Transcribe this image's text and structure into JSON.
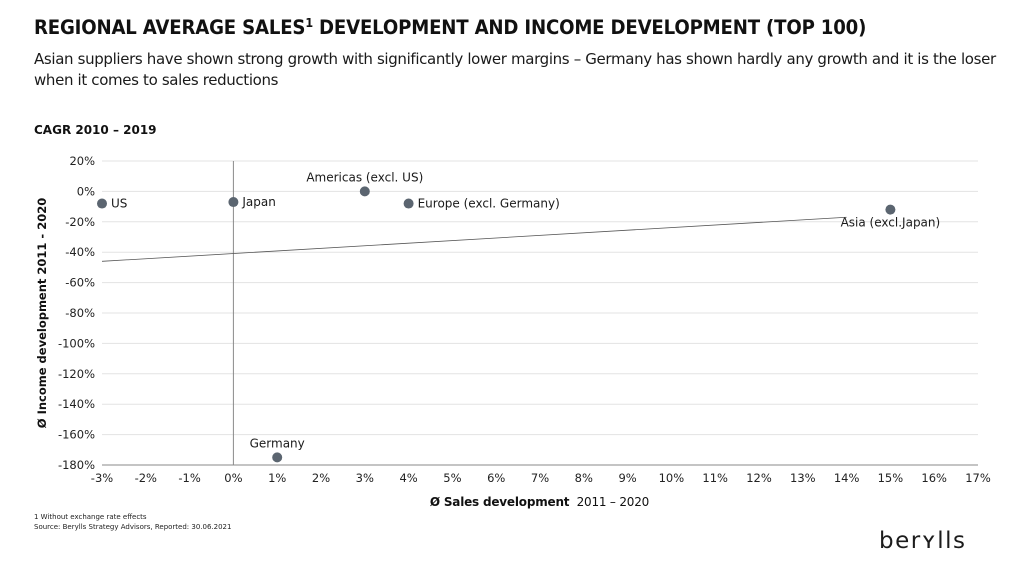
{
  "header": {
    "title": "REGIONAL AVERAGE SALES",
    "title_sup": "1",
    "title_rest": " DEVELOPMENT AND INCOME DEVELOPMENT (TOP 100)",
    "subtitle": "Asian suppliers have shown strong growth with significantly lower margins – Germany has shown hardly any growth and it is the loser when it comes to sales reductions",
    "section_label": "CAGR 2010 – 2019"
  },
  "chart_data": {
    "type": "scatter",
    "title": "Regional average sales development and income development (Top 100)",
    "xlabel_bold": "Ø Sales development",
    "xlabel_period": "2011 – 2020",
    "ylabel": "Ø Income development 2011 - 2020",
    "xlim": [
      -3,
      17
    ],
    "ylim": [
      -180,
      20
    ],
    "x_ticks": [
      -3,
      -2,
      -1,
      0,
      1,
      2,
      3,
      4,
      5,
      6,
      7,
      8,
      9,
      10,
      11,
      12,
      13,
      14,
      15,
      16,
      17
    ],
    "x_tick_labels": [
      "-3%",
      "-2%",
      "-1%",
      "0%",
      "1%",
      "2%",
      "3%",
      "4%",
      "5%",
      "6%",
      "7%",
      "8%",
      "9%",
      "10%",
      "11%",
      "12%",
      "13%",
      "14%",
      "15%",
      "16%",
      "17%"
    ],
    "y_ticks": [
      20,
      0,
      -20,
      -40,
      -60,
      -80,
      -100,
      -120,
      -140,
      -160,
      -180
    ],
    "y_tick_labels": [
      "20%",
      "0%",
      "-20%",
      "-40%",
      "-60%",
      "-80%",
      "-100%",
      "-120%",
      "-140%",
      "-160%",
      "-180%"
    ],
    "grid": true,
    "points": [
      {
        "label": "US",
        "x": -3,
        "y": -8,
        "label_pos": "right"
      },
      {
        "label": "Japan",
        "x": 0,
        "y": -7,
        "label_pos": "right"
      },
      {
        "label": "Americas (excl. US)",
        "x": 3,
        "y": 0,
        "label_pos": "above"
      },
      {
        "label": "Europe (excl. Germany)",
        "x": 4,
        "y": -8,
        "label_pos": "right"
      },
      {
        "label": "Asia (excl.Japan)",
        "x": 15,
        "y": -12,
        "label_pos": "below"
      },
      {
        "label": "Germany",
        "x": 1,
        "y": -175,
        "label_pos": "above"
      }
    ],
    "trendline": {
      "x": [
        -3,
        14
      ],
      "y": [
        -46,
        -17
      ]
    },
    "colors": {
      "point": "#5b6570",
      "grid": "#e3e3e3",
      "axis": "#8a8a8a",
      "trend": "#555555"
    }
  },
  "footer": {
    "footnote": "1 Without exchange rate effects",
    "source": "Source: Berylls Strategy Advisors, Reported: 30.06.2021",
    "logo": "berʏlls"
  }
}
